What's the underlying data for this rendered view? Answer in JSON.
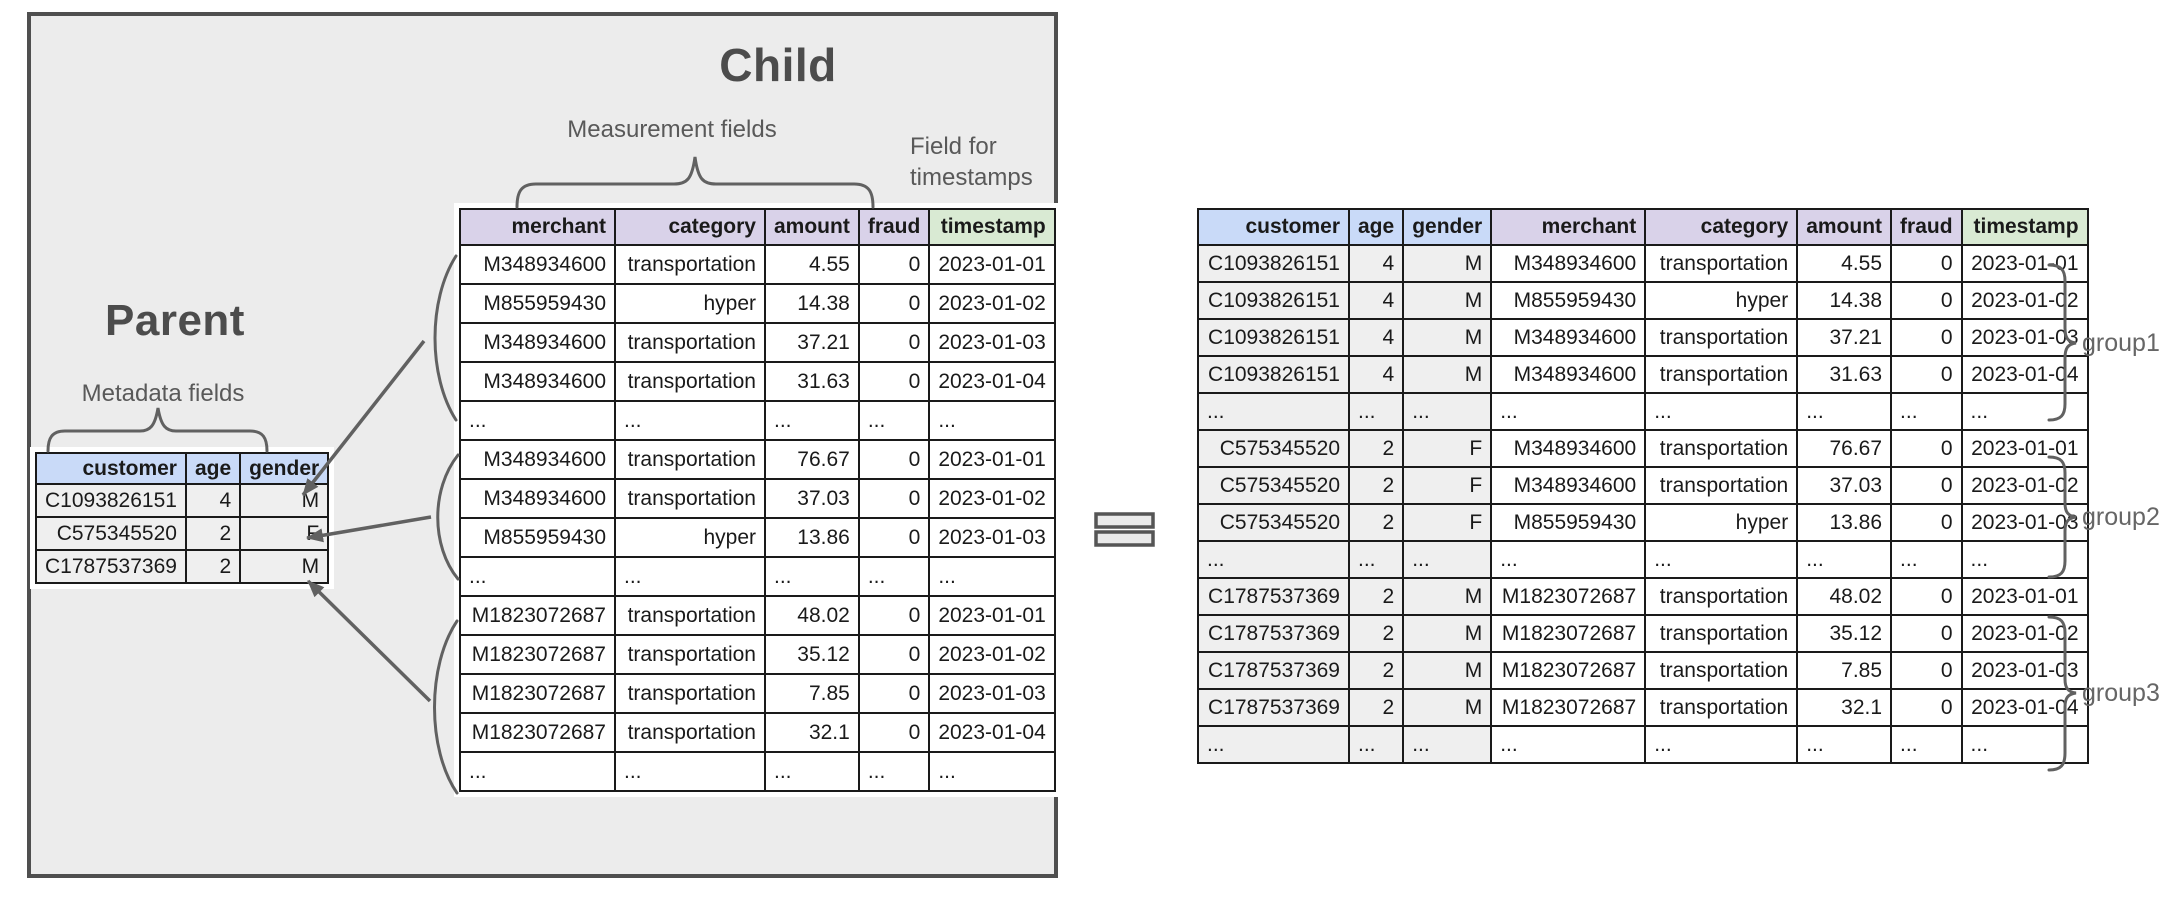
{
  "diagram": {
    "child_title": "Child",
    "parent_title": "Parent",
    "measurement_fields_label": "Measurement fields",
    "timestamps_field_label": "Field for\ntimestamps",
    "metadata_fields_label": "Metadata fields"
  },
  "parent_table": {
    "headers": [
      "customer",
      "age",
      "gender"
    ],
    "rows": [
      [
        "C1093826151",
        "4",
        "M"
      ],
      [
        "C575345520",
        "2",
        "F"
      ],
      [
        "C1787537369",
        "2",
        "M"
      ]
    ]
  },
  "child_table": {
    "headers": [
      "merchant",
      "category",
      "amount",
      "fraud",
      "timestamp"
    ],
    "rows": [
      [
        "M348934600",
        "transportation",
        "4.55",
        "0",
        "2023-01-01"
      ],
      [
        "M855959430",
        "hyper",
        "14.38",
        "0",
        "2023-01-02"
      ],
      [
        "M348934600",
        "transportation",
        "37.21",
        "0",
        "2023-01-03"
      ],
      [
        "M348934600",
        "transportation",
        "31.63",
        "0",
        "2023-01-04"
      ],
      [
        "...",
        "...",
        "...",
        "...",
        "..."
      ],
      [
        "M348934600",
        "transportation",
        "76.67",
        "0",
        "2023-01-01"
      ],
      [
        "M348934600",
        "transportation",
        "37.03",
        "0",
        "2023-01-02"
      ],
      [
        "M855959430",
        "hyper",
        "13.86",
        "0",
        "2023-01-03"
      ],
      [
        "...",
        "...",
        "...",
        "...",
        "..."
      ],
      [
        "M1823072687",
        "transportation",
        "48.02",
        "0",
        "2023-01-01"
      ],
      [
        "M1823072687",
        "transportation",
        "35.12",
        "0",
        "2023-01-02"
      ],
      [
        "M1823072687",
        "transportation",
        "7.85",
        "0",
        "2023-01-03"
      ],
      [
        "M1823072687",
        "transportation",
        "32.1",
        "0",
        "2023-01-04"
      ],
      [
        "...",
        "...",
        "...",
        "...",
        "..."
      ]
    ]
  },
  "merged_table": {
    "headers": [
      "customer",
      "age",
      "gender",
      "merchant",
      "category",
      "amount",
      "fraud",
      "timestamp"
    ],
    "rows": [
      [
        "C1093826151",
        "4",
        "M",
        "M348934600",
        "transportation",
        "4.55",
        "0",
        "2023-01-01"
      ],
      [
        "C1093826151",
        "4",
        "M",
        "M855959430",
        "hyper",
        "14.38",
        "0",
        "2023-01-02"
      ],
      [
        "C1093826151",
        "4",
        "M",
        "M348934600",
        "transportation",
        "37.21",
        "0",
        "2023-01-03"
      ],
      [
        "C1093826151",
        "4",
        "M",
        "M348934600",
        "transportation",
        "31.63",
        "0",
        "2023-01-04"
      ],
      [
        "...",
        "...",
        "...",
        "...",
        "...",
        "...",
        "...",
        "..."
      ],
      [
        "C575345520",
        "2",
        "F",
        "M348934600",
        "transportation",
        "76.67",
        "0",
        "2023-01-01"
      ],
      [
        "C575345520",
        "2",
        "F",
        "M348934600",
        "transportation",
        "37.03",
        "0",
        "2023-01-02"
      ],
      [
        "C575345520",
        "2",
        "F",
        "M855959430",
        "hyper",
        "13.86",
        "0",
        "2023-01-03"
      ],
      [
        "...",
        "...",
        "...",
        "...",
        "...",
        "...",
        "...",
        "..."
      ],
      [
        "C1787537369",
        "2",
        "M",
        "M1823072687",
        "transportation",
        "48.02",
        "0",
        "2023-01-01"
      ],
      [
        "C1787537369",
        "2",
        "M",
        "M1823072687",
        "transportation",
        "35.12",
        "0",
        "2023-01-02"
      ],
      [
        "C1787537369",
        "2",
        "M",
        "M1823072687",
        "transportation",
        "7.85",
        "0",
        "2023-01-03"
      ],
      [
        "C1787537369",
        "2",
        "M",
        "M1823072687",
        "transportation",
        "32.1",
        "0",
        "2023-01-04"
      ],
      [
        "...",
        "...",
        "...",
        "...",
        "...",
        "...",
        "...",
        "..."
      ]
    ]
  },
  "group_labels": [
    "group1",
    "group2",
    "group3"
  ],
  "colors": {
    "panel_bg": "#ececec",
    "panel_border": "#4f4f4f",
    "header_blue": "#c9daf8",
    "header_purple": "#d9d2e9",
    "header_green": "#d9ead3",
    "row_gray": "#efefef",
    "row_white": "#ffffff",
    "line_gray": "#616161",
    "table_border": "#1a1a1a"
  }
}
